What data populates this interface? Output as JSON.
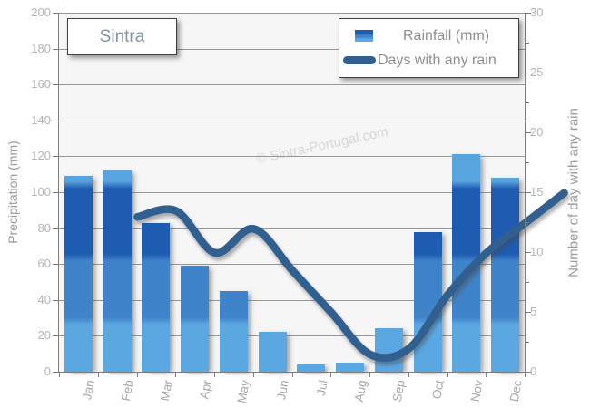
{
  "title": "Sintra",
  "watermark": "© Sintra-Portugal.com",
  "legend": {
    "rainfall_label": "Rainfall (mm)",
    "days_label": "Days with any rain"
  },
  "axes": {
    "left_label": "Precipitation (mm)",
    "right_label": "Number of day with any rain",
    "left_ticks": [
      200,
      180,
      160,
      140,
      120,
      100,
      80,
      60,
      40,
      20,
      0
    ],
    "right_ticks": [
      30,
      25,
      20,
      15,
      10,
      5,
      0
    ],
    "right_minor_step": 2.5
  },
  "chart_data": {
    "type": "bar",
    "title": "Sintra",
    "categories": [
      "Jan",
      "Feb",
      "Mar",
      "Apr",
      "May",
      "Jun",
      "Jul",
      "Aug",
      "Sep",
      "Oct",
      "Nov",
      "Dec"
    ],
    "series": [
      {
        "name": "Rainfall (mm)",
        "type": "bar",
        "axis": "left",
        "values": [
          109,
          112,
          83,
          59,
          45,
          22,
          4,
          5,
          24,
          78,
          121,
          108
        ]
      },
      {
        "name": "Days with any rain",
        "type": "line",
        "axis": "right",
        "values": [
          14,
          14.5,
          11,
          13,
          9.5,
          6,
          2.5,
          3,
          7.5,
          11,
          13.5,
          16
        ]
      }
    ],
    "xlabel": "",
    "ylabel_left": "Precipitation (mm)",
    "ylabel_right": "Number of day with any rain",
    "ylim_left": [
      0,
      200
    ],
    "ylim_right": [
      0,
      30
    ],
    "grid": "horizontal",
    "legend_position": "top-right"
  },
  "colors": {
    "bar_light": "#5ba7e2",
    "bar_mid": "#3f83c9",
    "bar_dark": "#1e5cb1",
    "bar_cap": "#58a4df",
    "line": "#315f90",
    "watermark": "#d6d6d6",
    "plot_bg": "#f6f6f6",
    "gridline": "#979797"
  }
}
